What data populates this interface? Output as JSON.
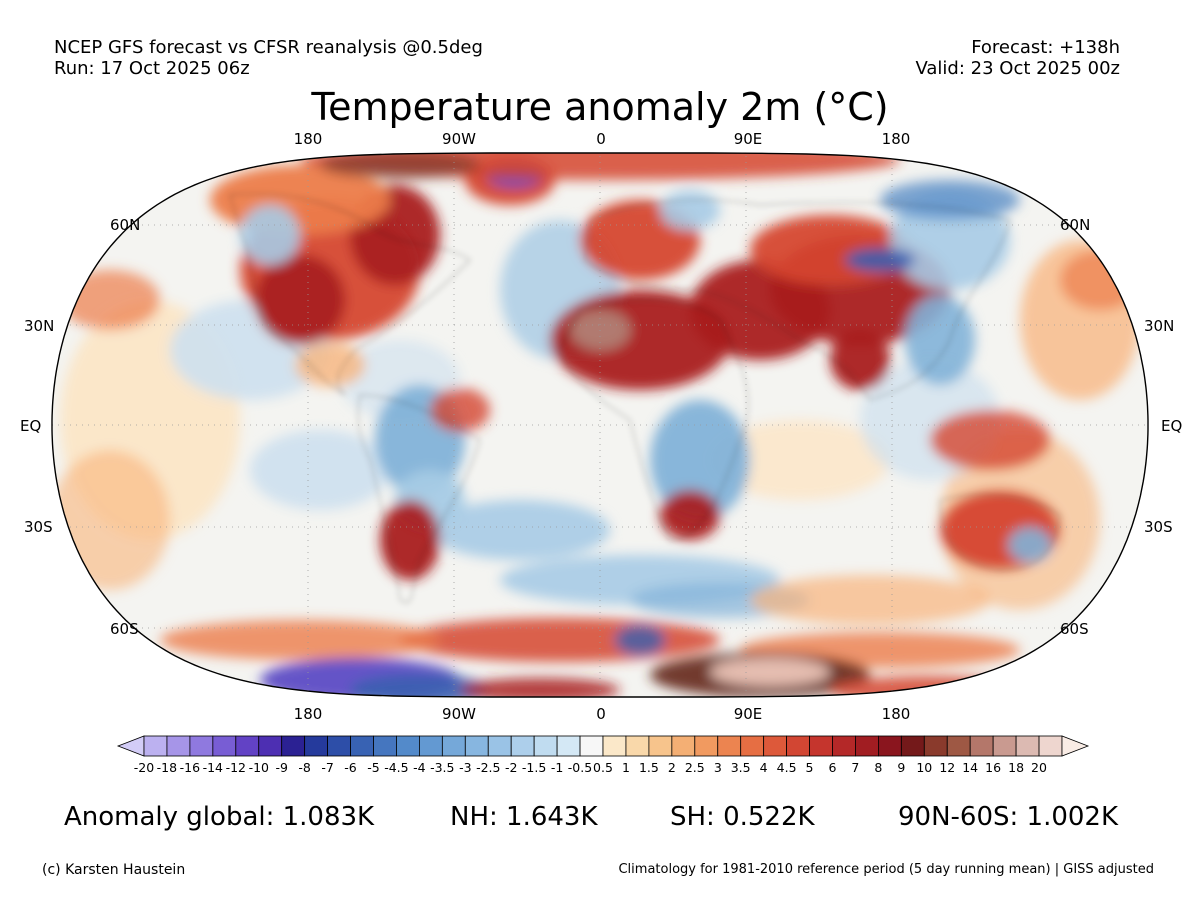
{
  "header": {
    "line1_left": "NCEP GFS forecast vs CFSR reanalysis @0.5deg",
    "line2_left": "Run: 17 Oct 2025 06z",
    "line1_right": "Forecast: +138h",
    "line2_right": "Valid: 23 Oct 2025 00z"
  },
  "title": "Temperature anomaly 2m (°C)",
  "map": {
    "projection": "Robinson",
    "lon_labels": [
      "180",
      "90W",
      "0",
      "90E",
      "180"
    ],
    "lat_labels_left": [
      "60N",
      "30N",
      "EQ",
      "30S",
      "60S"
    ],
    "lat_labels_right": [
      "60N",
      "30N",
      "EQ",
      "30S",
      "60S"
    ],
    "ocean_color": "#f4f4f1",
    "cold_colors": [
      "#cde0ee",
      "#a7cbe5",
      "#82b2d8",
      "#5d8fc7",
      "#3a5fb0"
    ],
    "warm_colors": [
      "#fde3bf",
      "#f8b47c",
      "#ec7c4a",
      "#d54630",
      "#a91f20"
    ],
    "extreme_colors": [
      "#6a2f22",
      "#b27f74",
      "#ecc5b8",
      "#5c4cc4"
    ]
  },
  "colorbar": {
    "tick_labels": [
      "-20",
      "-18",
      "-16",
      "-14",
      "-12",
      "-10",
      "-9",
      "-8",
      "-7",
      "-6",
      "-5",
      "-4.5",
      "-4",
      "-3.5",
      "-3",
      "-2.5",
      "-2",
      "-1.5",
      "-1",
      "-0.5",
      "0.5",
      "1",
      "1.5",
      "2",
      "2.5",
      "3",
      "3.5",
      "4",
      "4.5",
      "5",
      "6",
      "7",
      "8",
      "9",
      "10",
      "12",
      "14",
      "16",
      "18",
      "20"
    ],
    "colors": [
      "#d3cdf7",
      "#bcb1f0",
      "#a695e8",
      "#8f79df",
      "#785dd4",
      "#6242c5",
      "#4d2fb2",
      "#2b2193",
      "#253a9c",
      "#2d4ea8",
      "#3862b3",
      "#4576bf",
      "#538aca",
      "#6399d2",
      "#75a8d9",
      "#87b6e0",
      "#9ac3e6",
      "#adcfeb",
      "#c0dcf0",
      "#d4e8f5",
      "#f7f7f7",
      "#fbe8c9",
      "#f9d8aa",
      "#f7c48c",
      "#f4af74",
      "#f19a60",
      "#ec8450",
      "#e66e43",
      "#dd593a",
      "#d24633",
      "#c5352d",
      "#b42828",
      "#a11d22",
      "#8a151e",
      "#74191a",
      "#8a3a2c",
      "#9e5844",
      "#b4776a",
      "#c99a90",
      "#dcbab2",
      "#eed6cf",
      "#f9ece5"
    ]
  },
  "stats": {
    "global": "Anomaly global: 1.083K",
    "nh": "NH: 1.643K",
    "sh": "SH: 0.522K",
    "band": "90N-60S: 1.002K"
  },
  "footer": {
    "left": "(c) Karsten Haustein",
    "right": "Climatology for 1981-2010 reference period (5 day running mean) | GISS adjusted"
  }
}
